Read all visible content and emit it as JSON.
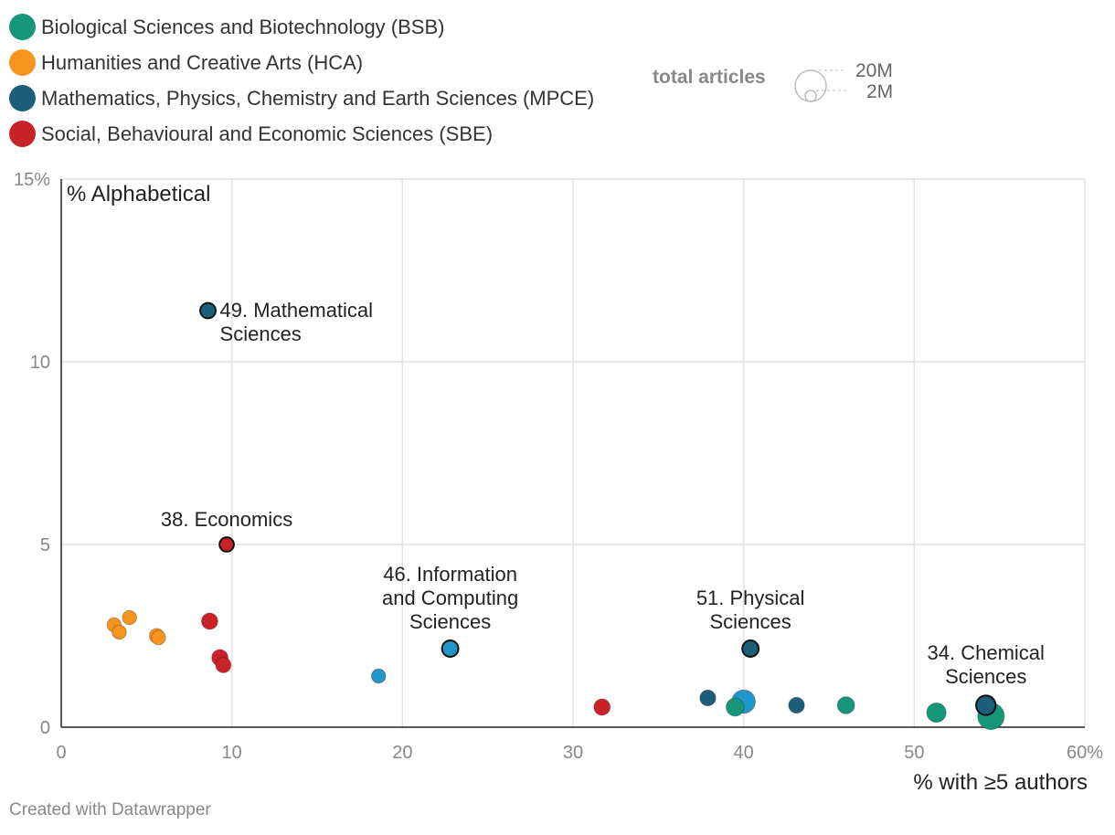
{
  "legend": {
    "items": [
      {
        "label": "Biological Sciences and Biotechnology (BSB)",
        "color": "#17967a"
      },
      {
        "label": "Humanities and Creative Arts (HCA)",
        "color": "#f7941d"
      },
      {
        "label": "Mathematics, Physics, Chemistry and Earth Sciences (MPCE)",
        "color": "#1b5f7a"
      },
      {
        "label": "Social, Behavioural and Economic Sciences (SBE)",
        "color": "#c9232a"
      }
    ],
    "size_title": "total articles",
    "size_large": "20M",
    "size_small": "2M"
  },
  "footer": "Created with Datawrapper",
  "chart_data": {
    "type": "scatter",
    "ylabel": "% Alphabetical",
    "xlabel": "% with ≥5 authors",
    "xlim": [
      0,
      60
    ],
    "ylim": [
      0,
      15
    ],
    "x_ticks": [
      "0",
      "10",
      "20",
      "30",
      "40",
      "50",
      "60%"
    ],
    "y_ticks": [
      "0",
      "5",
      "10",
      "15%"
    ],
    "grid": true,
    "points": [
      {
        "group": "HCA",
        "x": 3.1,
        "y": 2.8,
        "size": 0.3
      },
      {
        "group": "HCA",
        "x": 3.4,
        "y": 2.6,
        "size": 0.3
      },
      {
        "group": "HCA",
        "x": 4.0,
        "y": 3.0,
        "size": 0.3
      },
      {
        "group": "HCA",
        "x": 5.6,
        "y": 2.5,
        "size": 0.35
      },
      {
        "group": "HCA",
        "x": 5.7,
        "y": 2.45,
        "size": 0.3
      },
      {
        "group": "SBE",
        "x": 8.7,
        "y": 2.9,
        "size": 0.5
      },
      {
        "group": "SBE",
        "x": 9.3,
        "y": 1.9,
        "size": 0.5
      },
      {
        "group": "SBE",
        "x": 9.5,
        "y": 1.7,
        "size": 0.4
      },
      {
        "group": "SBE",
        "x": 9.7,
        "y": 5.0,
        "size": 0.3,
        "label": "38. Economics",
        "highlight": true
      },
      {
        "group": "MPCE",
        "x": 8.6,
        "y": 11.4,
        "size": 0.4,
        "label": "49. Mathematical Sciences",
        "highlight": true
      },
      {
        "group": "MPCE-light",
        "x": 18.6,
        "y": 1.4,
        "size": 0.3
      },
      {
        "group": "MPCE-light",
        "x": 22.8,
        "y": 2.15,
        "size": 0.5,
        "label": "46. Information and Computing Sciences",
        "highlight": true
      },
      {
        "group": "SBE",
        "x": 31.7,
        "y": 0.55,
        "size": 0.5
      },
      {
        "group": "MPCE",
        "x": 37.9,
        "y": 0.8,
        "size": 0.45
      },
      {
        "group": "BSB",
        "x": 39.5,
        "y": 0.55,
        "size": 0.7
      },
      {
        "group": "MPCE-light",
        "x": 40.0,
        "y": 0.7,
        "size": 1.6
      },
      {
        "group": "MPCE",
        "x": 40.4,
        "y": 2.15,
        "size": 0.5,
        "label": "51. Physical Sciences",
        "highlight": true
      },
      {
        "group": "MPCE",
        "x": 43.1,
        "y": 0.6,
        "size": 0.45
      },
      {
        "group": "BSB",
        "x": 46.0,
        "y": 0.6,
        "size": 0.6
      },
      {
        "group": "BSB",
        "x": 51.3,
        "y": 0.4,
        "size": 0.9
      },
      {
        "group": "BSB",
        "x": 54.5,
        "y": 0.3,
        "size": 2.3
      },
      {
        "group": "MPCE",
        "x": 54.2,
        "y": 0.6,
        "size": 0.9,
        "label": "34. Chemical Sciences",
        "highlight": true
      }
    ],
    "group_colors": {
      "BSB": "#17967a",
      "HCA": "#f7941d",
      "MPCE": "#1b5f7a",
      "MPCE-light": "#2196c8",
      "SBE": "#c9232a"
    }
  }
}
